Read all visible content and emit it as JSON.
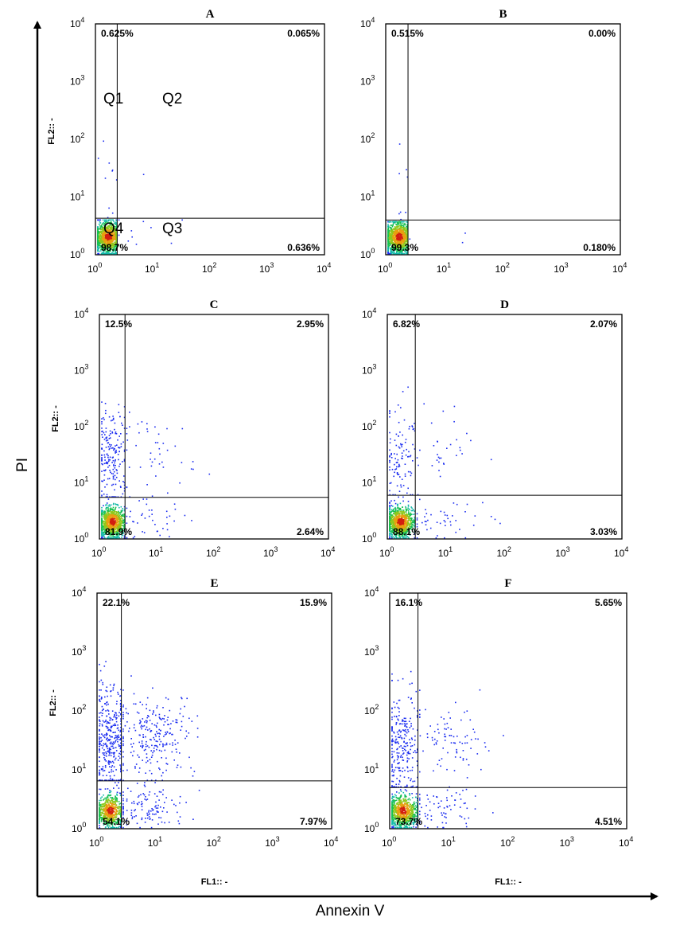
{
  "figure": {
    "y_axis_label": "PI",
    "x_axis_label": "Annexin V"
  },
  "chart_data": [
    {
      "type": "scatter",
      "panel": "A",
      "title": "A",
      "ylabel": "FL2:: -",
      "xlabel": "",
      "scale": "log",
      "xlim": [
        1,
        10000
      ],
      "ylim": [
        1,
        10000
      ],
      "ticks": [
        "10",
        "10",
        "10",
        "10",
        "10"
      ],
      "tick_exps": [
        "0",
        "1",
        "2",
        "3",
        "4"
      ],
      "gate": {
        "x": 2.4,
        "y": 4.3
      },
      "quadrant_percent": {
        "Q1": "0.625%",
        "Q2": "0.065%",
        "Q3": "0.636%",
        "Q4": "98.7%"
      },
      "quadrant_labels": [
        "Q1",
        "Q2",
        "Q3",
        "Q4"
      ],
      "populations": {
        "ll": 98.7,
        "ul": 0.625,
        "ur": 0.065,
        "lr": 0.636
      }
    },
    {
      "type": "scatter",
      "panel": "B",
      "title": "B",
      "ylabel": "",
      "xlabel": "",
      "scale": "log",
      "xlim": [
        1,
        10000
      ],
      "ylim": [
        1,
        10000
      ],
      "ticks": [
        "10",
        "10",
        "10",
        "10",
        "10"
      ],
      "tick_exps": [
        "0",
        "1",
        "2",
        "3",
        "4"
      ],
      "gate": {
        "x": 2.4,
        "y": 4.0
      },
      "quadrant_percent": {
        "Q1": "0.515%",
        "Q2": "0.00%",
        "Q3": "0.180%",
        "Q4": "99.3%"
      },
      "populations": {
        "ll": 99.3,
        "ul": 0.515,
        "ur": 0.0,
        "lr": 0.18
      }
    },
    {
      "type": "scatter",
      "panel": "C",
      "title": "C",
      "ylabel": "FL2:: -",
      "xlabel": "",
      "scale": "log",
      "xlim": [
        1,
        10000
      ],
      "ylim": [
        1,
        10000
      ],
      "ticks": [
        "10",
        "10",
        "10",
        "10",
        "10"
      ],
      "tick_exps": [
        "0",
        "1",
        "2",
        "3",
        "4"
      ],
      "gate": {
        "x": 2.8,
        "y": 5.5
      },
      "quadrant_percent": {
        "Q1": "12.5%",
        "Q2": "2.95%",
        "Q3": "2.64%",
        "Q4": "81.9%"
      },
      "populations": {
        "ll": 81.9,
        "ul": 12.5,
        "ur": 2.95,
        "lr": 2.64
      }
    },
    {
      "type": "scatter",
      "panel": "D",
      "title": "D",
      "ylabel": "",
      "xlabel": "",
      "scale": "log",
      "xlim": [
        1,
        10000
      ],
      "ylim": [
        1,
        10000
      ],
      "ticks": [
        "10",
        "10",
        "10",
        "10",
        "10"
      ],
      "tick_exps": [
        "0",
        "1",
        "2",
        "3",
        "4"
      ],
      "gate": {
        "x": 3.0,
        "y": 6.0
      },
      "quadrant_percent": {
        "Q1": "6.82%",
        "Q2": "2.07%",
        "Q3": "3.03%",
        "Q4": "88.1%"
      },
      "populations": {
        "ll": 88.1,
        "ul": 6.82,
        "ur": 2.07,
        "lr": 3.03
      }
    },
    {
      "type": "scatter",
      "panel": "E",
      "title": "E",
      "ylabel": "FL2:: -",
      "xlabel": "FL1:: -",
      "scale": "log",
      "xlim": [
        1,
        10000
      ],
      "ylim": [
        1,
        10000
      ],
      "ticks": [
        "10",
        "10",
        "10",
        "10",
        "10"
      ],
      "tick_exps": [
        "0",
        "1",
        "2",
        "3",
        "4"
      ],
      "gate": {
        "x": 2.6,
        "y": 6.5
      },
      "quadrant_percent": {
        "Q1": "22.1%",
        "Q2": "15.9%",
        "Q3": "7.97%",
        "Q4": "54.1%"
      },
      "populations": {
        "ll": 54.1,
        "ul": 22.1,
        "ur": 15.9,
        "lr": 7.97
      }
    },
    {
      "type": "scatter",
      "panel": "F",
      "title": "F",
      "ylabel": "",
      "xlabel": "FL1:: -",
      "scale": "log",
      "xlim": [
        1,
        10000
      ],
      "ylim": [
        1,
        10000
      ],
      "ticks": [
        "10",
        "10",
        "10",
        "10",
        "10"
      ],
      "tick_exps": [
        "0",
        "1",
        "2",
        "3",
        "4"
      ],
      "gate": {
        "x": 3.0,
        "y": 5.0
      },
      "quadrant_percent": {
        "Q1": "16.1%",
        "Q2": "5.65%",
        "Q3": "4.51%",
        "Q4": "73.7%"
      },
      "populations": {
        "ll": 73.7,
        "ul": 16.1,
        "ur": 5.65,
        "lr": 4.51
      }
    }
  ]
}
